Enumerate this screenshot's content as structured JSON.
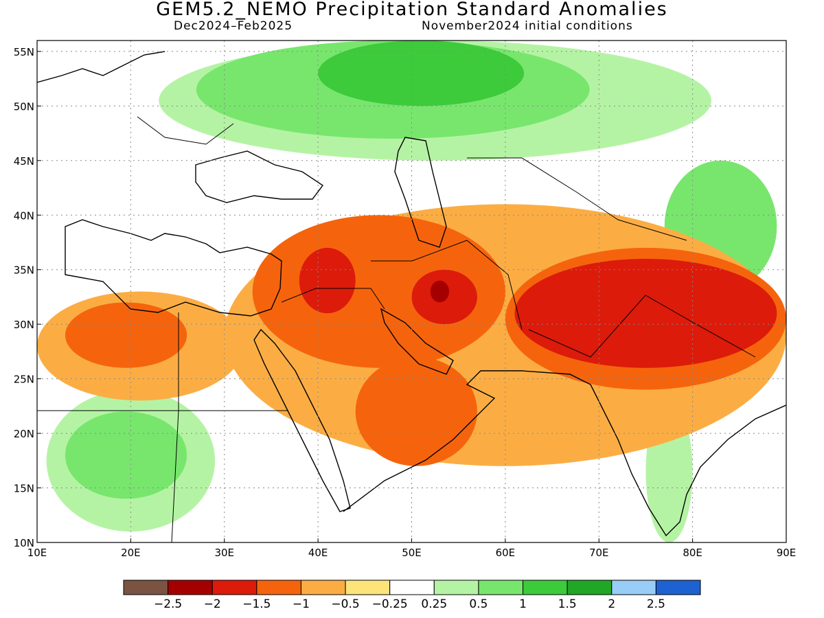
{
  "title": "GEM5.2_NEMO Precipitation Standard Anomalies",
  "subtitle_left": "Dec2024–Feb2025",
  "subtitle_right": "November2024 initial conditions",
  "map_extent": {
    "lon": [
      10,
      90
    ],
    "lat": [
      10,
      56
    ]
  },
  "lat_ticks": [
    {
      "value": 55,
      "label": "55N"
    },
    {
      "value": 50,
      "label": "50N"
    },
    {
      "value": 45,
      "label": "45N"
    },
    {
      "value": 40,
      "label": "40N"
    },
    {
      "value": 35,
      "label": "35N"
    },
    {
      "value": 30,
      "label": "30N"
    },
    {
      "value": 25,
      "label": "25N"
    },
    {
      "value": 20,
      "label": "20N"
    },
    {
      "value": 15,
      "label": "15N"
    },
    {
      "value": 10,
      "label": "10N"
    }
  ],
  "lon_ticks": [
    {
      "value": 10,
      "label": "10E"
    },
    {
      "value": 20,
      "label": "20E"
    },
    {
      "value": 30,
      "label": "30E"
    },
    {
      "value": 40,
      "label": "40E"
    },
    {
      "value": 50,
      "label": "50E"
    },
    {
      "value": 60,
      "label": "60E"
    },
    {
      "value": 70,
      "label": "70E"
    },
    {
      "value": 80,
      "label": "80E"
    },
    {
      "value": 90,
      "label": "90E"
    }
  ],
  "colorbar": {
    "colors": [
      "#7a5343",
      "#a50000",
      "#dc1b0b",
      "#f5640c",
      "#fbad44",
      "#fde47a",
      "#ffffff",
      "#b5f3a4",
      "#78e66d",
      "#3dca3b",
      "#22a625",
      "#97cdf6",
      "#1d62d0"
    ],
    "labels": [
      "−2.5",
      "−2",
      "−1.5",
      "−1",
      "−0.5",
      "−0.25",
      "0.25",
      "0.5",
      "1",
      "1.5",
      "2",
      "2.5"
    ]
  },
  "anomaly_regions": [
    {
      "level": "0.5",
      "color": "#b5f3a4",
      "lon": [
        23,
        82
      ],
      "lat": [
        45,
        56
      ]
    },
    {
      "level": "1",
      "color": "#78e66d",
      "lon": [
        27,
        69
      ],
      "lat": [
        47,
        56
      ]
    },
    {
      "level": "1.5",
      "color": "#3dca3b",
      "lon": [
        40,
        62
      ],
      "lat": [
        50,
        56
      ]
    },
    {
      "level": "0.5",
      "color": "#b5f3a4",
      "lon": [
        11,
        29
      ],
      "lat": [
        11,
        24
      ]
    },
    {
      "level": "1",
      "color": "#78e66d",
      "lon": [
        13,
        26
      ],
      "lat": [
        14,
        22
      ]
    },
    {
      "level": "0.5",
      "color": "#b5f3a4",
      "lon": [
        75,
        80
      ],
      "lat": [
        10,
        23
      ]
    },
    {
      "level": "1",
      "color": "#78e66d",
      "lon": [
        77,
        89
      ],
      "lat": [
        33,
        45
      ]
    },
    {
      "level": "−0.5",
      "color": "#fbad44",
      "lon": [
        10,
        32
      ],
      "lat": [
        23,
        33
      ]
    },
    {
      "level": "−0.5",
      "color": "#fbad44",
      "lon": [
        30,
        90
      ],
      "lat": [
        17,
        41
      ]
    },
    {
      "level": "−1",
      "color": "#f5640c",
      "lon": [
        13,
        26
      ],
      "lat": [
        26,
        32
      ]
    },
    {
      "level": "−1",
      "color": "#f5640c",
      "lon": [
        33,
        60
      ],
      "lat": [
        26,
        40
      ]
    },
    {
      "level": "−1",
      "color": "#f5640c",
      "lon": [
        44,
        57
      ],
      "lat": [
        17,
        27
      ]
    },
    {
      "level": "−1",
      "color": "#f5640c",
      "lon": [
        60,
        90
      ],
      "lat": [
        24,
        37
      ]
    },
    {
      "level": "−1.5",
      "color": "#dc1b0b",
      "lon": [
        38,
        44
      ],
      "lat": [
        31,
        37
      ]
    },
    {
      "level": "−1.5",
      "color": "#dc1b0b",
      "lon": [
        50,
        57
      ],
      "lat": [
        30,
        35
      ]
    },
    {
      "level": "−1.5",
      "color": "#dc1b0b",
      "lon": [
        61,
        89
      ],
      "lat": [
        26,
        36
      ]
    },
    {
      "level": "−2",
      "color": "#a50000",
      "lon": [
        52,
        54
      ],
      "lat": [
        32,
        34
      ]
    }
  ]
}
